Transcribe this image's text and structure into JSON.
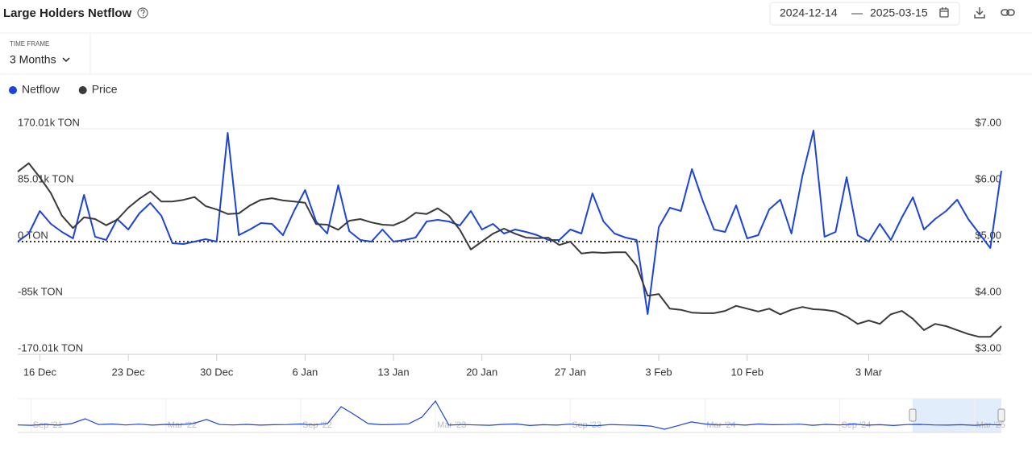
{
  "header": {
    "title": "Large Holders Netflow",
    "date_from": "2024-12-14",
    "date_sep": "—",
    "date_to": "2025-03-15"
  },
  "time_frame": {
    "label": "TIME FRAME",
    "value": "3 Months"
  },
  "chart_data": [
    {
      "type": "line",
      "categories": [
        null,
        null,
        "16 Dec",
        null,
        null,
        null,
        null,
        null,
        null,
        null,
        "23 Dec",
        null,
        null,
        null,
        null,
        null,
        null,
        null,
        "30 Dec",
        null,
        null,
        null,
        null,
        null,
        null,
        null,
        "6 Jan",
        null,
        null,
        null,
        null,
        null,
        null,
        null,
        "13 Jan",
        null,
        null,
        null,
        null,
        null,
        null,
        null,
        "20 Jan",
        null,
        null,
        null,
        null,
        null,
        null,
        null,
        "27 Jan",
        null,
        null,
        null,
        null,
        null,
        null,
        null,
        "3 Feb",
        null,
        null,
        null,
        null,
        null,
        null,
        null,
        "10 Feb",
        null,
        null,
        null,
        null,
        null,
        null,
        null,
        null,
        null,
        null,
        "3 Mar",
        null,
        null,
        null,
        null,
        null,
        null,
        null,
        null,
        null,
        null,
        null,
        null
      ],
      "series": [
        {
          "name": "Netflow",
          "color": "#1d44d8",
          "axis": "y",
          "values": [
            0,
            12100,
            46100,
            26700,
            14600,
            4900,
            70400,
            7300,
            2400,
            34000,
            18200,
            42500,
            58300,
            38800,
            -2400,
            -3600,
            0,
            3600,
            0,
            163900,
            9700,
            18200,
            27900,
            26700,
            9700,
            46100,
            77700,
            30400,
            12100,
            85000,
            15800,
            2400,
            0,
            18200,
            0,
            2400,
            6100,
            30400,
            32800,
            30400,
            24300,
            46100,
            18200,
            26700,
            12100,
            18200,
            14600,
            9700,
            2400,
            2400,
            18200,
            12100,
            72800,
            30400,
            12100,
            6100,
            2400,
            -109300,
            21900,
            51000,
            46100,
            109300,
            60700,
            18200,
            14600,
            54600,
            4900,
            9700,
            48600,
            63100,
            12100,
            99500,
            167500,
            7300,
            14600,
            97100,
            9700,
            0,
            26700,
            2400,
            36400,
            66800,
            18200,
            34000,
            46100,
            63100,
            34000,
            12100,
            -9700,
            106800
          ]
        },
        {
          "name": "Price",
          "color": "#3a3a3a",
          "axis": "y2",
          "values": [
            6.24,
            6.39,
            6.14,
            5.86,
            5.46,
            5.24,
            5.43,
            5.4,
            5.29,
            5.39,
            5.6,
            5.76,
            5.89,
            5.71,
            5.71,
            5.74,
            5.79,
            5.63,
            5.57,
            5.49,
            5.5,
            5.64,
            5.74,
            5.77,
            5.73,
            5.71,
            5.69,
            5.31,
            5.3,
            5.21,
            5.37,
            5.4,
            5.34,
            5.3,
            5.29,
            5.37,
            5.51,
            5.49,
            5.59,
            5.46,
            5.21,
            4.86,
            5.0,
            5.14,
            5.23,
            5.14,
            5.07,
            5.06,
            5.07,
            4.94,
            5.0,
            4.79,
            4.81,
            4.8,
            4.81,
            4.81,
            4.57,
            4.04,
            4.07,
            3.81,
            3.79,
            3.74,
            3.73,
            3.73,
            3.77,
            3.86,
            3.81,
            3.76,
            3.81,
            3.71,
            3.79,
            3.84,
            3.8,
            3.79,
            3.76,
            3.67,
            3.54,
            3.6,
            3.54,
            3.71,
            3.77,
            3.63,
            3.43,
            3.54,
            3.5,
            3.43,
            3.36,
            3.31,
            3.31,
            3.5
          ]
        }
      ],
      "ylim": [
        -170010,
        170010
      ],
      "yticks": [
        {
          "value": 170010,
          "label": "170.01k TON"
        },
        {
          "value": 85010,
          "label": "85.01k TON"
        },
        {
          "value": 0,
          "label": "0 TON"
        },
        {
          "value": -85000,
          "label": "-85k TON"
        },
        {
          "value": -170010,
          "label": "-170.01k TON"
        }
      ],
      "y2lim": [
        3,
        7
      ],
      "y2ticks": [
        {
          "value": 7,
          "label": "$7.00"
        },
        {
          "value": 6,
          "label": "$6.00"
        },
        {
          "value": 5,
          "label": "$5.00"
        },
        {
          "value": 4,
          "label": "$4.00"
        },
        {
          "value": 3,
          "label": "$3.00"
        }
      ],
      "grid": true,
      "legend": "top-left"
    },
    {
      "type": "line",
      "categories": [
        null,
        "Sep '21",
        null,
        null,
        null,
        null,
        null,
        null,
        null,
        null,
        null,
        "Mar '22",
        null,
        null,
        null,
        null,
        null,
        null,
        null,
        null,
        null,
        "Sep '22",
        null,
        null,
        null,
        null,
        null,
        null,
        null,
        null,
        null,
        "Mar '23",
        null,
        null,
        null,
        null,
        null,
        null,
        null,
        null,
        null,
        "Sep '23",
        null,
        null,
        null,
        null,
        null,
        null,
        null,
        null,
        null,
        "Mar '24",
        null,
        null,
        null,
        null,
        null,
        null,
        null,
        null,
        null,
        "Sep '24",
        null,
        null,
        null,
        null,
        null,
        null,
        null,
        null,
        null,
        "Mar '25",
        null,
        null
      ],
      "series": [
        {
          "name": "Netflow",
          "color": "#1d44d8",
          "values": [
            100000,
            80000,
            130000,
            90000,
            170000,
            430000,
            120000,
            150000,
            100000,
            140000,
            90000,
            130000,
            110000,
            170000,
            390000,
            120000,
            100000,
            130000,
            90000,
            110000,
            120000,
            150000,
            100000,
            180000,
            1070000,
            640000,
            170000,
            110000,
            130000,
            160000,
            520000,
            1370000,
            90000,
            120000,
            100000,
            80000,
            130000,
            150000,
            70000,
            110000,
            90000,
            140000,
            80000,
            60000,
            120000,
            100000,
            80000,
            40000,
            -130000,
            60000,
            260000,
            150000,
            100000,
            130000,
            90000,
            150000,
            110000,
            120000,
            140000,
            80000,
            130000,
            100000,
            150000,
            90000,
            110000,
            70000,
            120000,
            130000,
            100000,
            90000,
            110000,
            80000,
            120000,
            100000
          ]
        }
      ],
      "ylim": [
        -300000,
        1500000
      ]
    }
  ]
}
